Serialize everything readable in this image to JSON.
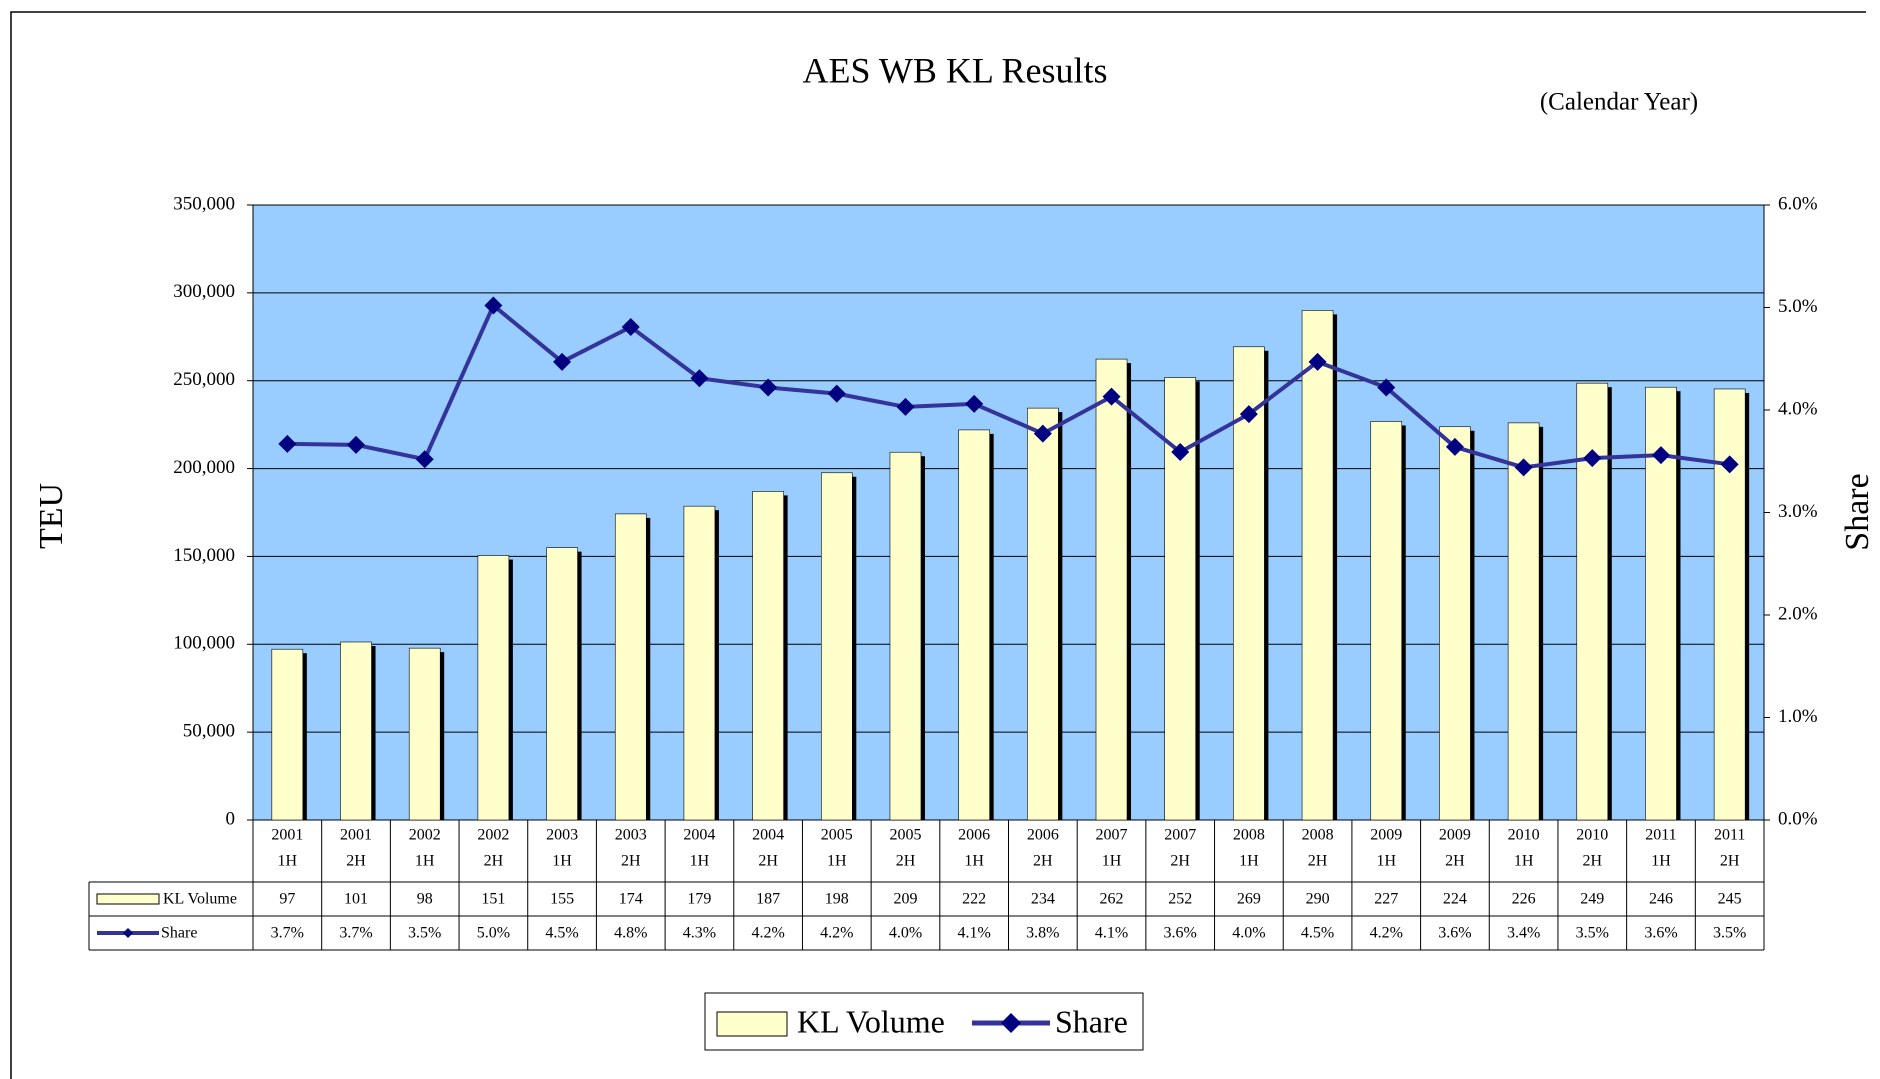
{
  "chart_data": {
    "type": "bar_line",
    "title": "AES WB KL Results",
    "subtitle": "(Calendar Year)",
    "y_label": "TEU",
    "y2_label": "Share",
    "categories": [
      [
        "2001",
        "1H"
      ],
      [
        "2001",
        "2H"
      ],
      [
        "2002",
        "1H"
      ],
      [
        "2002",
        "2H"
      ],
      [
        "2003",
        "1H"
      ],
      [
        "2003",
        "2H"
      ],
      [
        "2004",
        "1H"
      ],
      [
        "2004",
        "2H"
      ],
      [
        "2005",
        "1H"
      ],
      [
        "2005",
        "2H"
      ],
      [
        "2006",
        "1H"
      ],
      [
        "2006",
        "2H"
      ],
      [
        "2007",
        "1H"
      ],
      [
        "2007",
        "2H"
      ],
      [
        "2008",
        "1H"
      ],
      [
        "2008",
        "2H"
      ],
      [
        "2009",
        "1H"
      ],
      [
        "2009",
        "2H"
      ],
      [
        "2010",
        "1H"
      ],
      [
        "2010",
        "2H"
      ],
      [
        "2011",
        "1H"
      ],
      [
        "2011",
        "2H"
      ]
    ],
    "series": [
      {
        "name": "KL Volume",
        "type": "bar",
        "color": "#ffffcc",
        "values": [
          97200,
          101300,
          97800,
          150500,
          155000,
          174200,
          178600,
          187000,
          197600,
          209300,
          222000,
          234400,
          262300,
          251800,
          269300,
          290000,
          226800,
          223800,
          226000,
          248600,
          246300,
          245300
        ],
        "value_labels": [
          "97",
          "101",
          "98",
          "151",
          "155",
          "174",
          "179",
          "187",
          "198",
          "209",
          "222",
          "234",
          "262",
          "252",
          "269",
          "290",
          "227",
          "224",
          "226",
          "249",
          "246",
          "245"
        ]
      },
      {
        "name": "Share",
        "type": "line",
        "axis": "y2",
        "color": "#333399",
        "marker_color": "#000080",
        "values": [
          3.67,
          3.66,
          3.52,
          5.02,
          4.47,
          4.81,
          4.31,
          4.22,
          4.16,
          4.03,
          4.06,
          3.77,
          4.13,
          3.59,
          3.96,
          4.47,
          4.22,
          3.64,
          3.44,
          3.53,
          3.56,
          3.47
        ],
        "value_labels": [
          "3.7%",
          "3.7%",
          "3.5%",
          "5.0%",
          "4.5%",
          "4.8%",
          "4.3%",
          "4.2%",
          "4.2%",
          "4.0%",
          "4.1%",
          "3.8%",
          "4.1%",
          "3.6%",
          "4.0%",
          "4.5%",
          "4.2%",
          "3.6%",
          "3.4%",
          "3.5%",
          "3.6%",
          "3.5%"
        ]
      }
    ],
    "ylim": [
      0,
      350000
    ],
    "yticks": [
      0,
      {
        "value": 50000,
        "label": "50,000"
      },
      {
        "value": 100000,
        "label": "100,000"
      },
      {
        "value": 150000,
        "label": "150,000"
      },
      {
        "value": 200000,
        "label": "200,000"
      },
      {
        "value": 250000,
        "label": "250,000"
      },
      {
        "value": 300000,
        "label": "300,000"
      },
      {
        "value": 350000,
        "label": "350,000"
      }
    ],
    "y2lim": [
      0,
      6
    ],
    "y2ticks": [
      {
        "value": 0,
        "label": "0.0%"
      },
      {
        "value": 1,
        "label": "1.0%"
      },
      {
        "value": 2,
        "label": "2.0%"
      },
      {
        "value": 3,
        "label": "3.0%"
      },
      {
        "value": 4,
        "label": "4.0%"
      },
      {
        "value": 5,
        "label": "5.0%"
      },
      {
        "value": 6,
        "label": "6.0%"
      }
    ],
    "grid": true,
    "plot_background": "#99ccff",
    "legend": "bottom"
  }
}
